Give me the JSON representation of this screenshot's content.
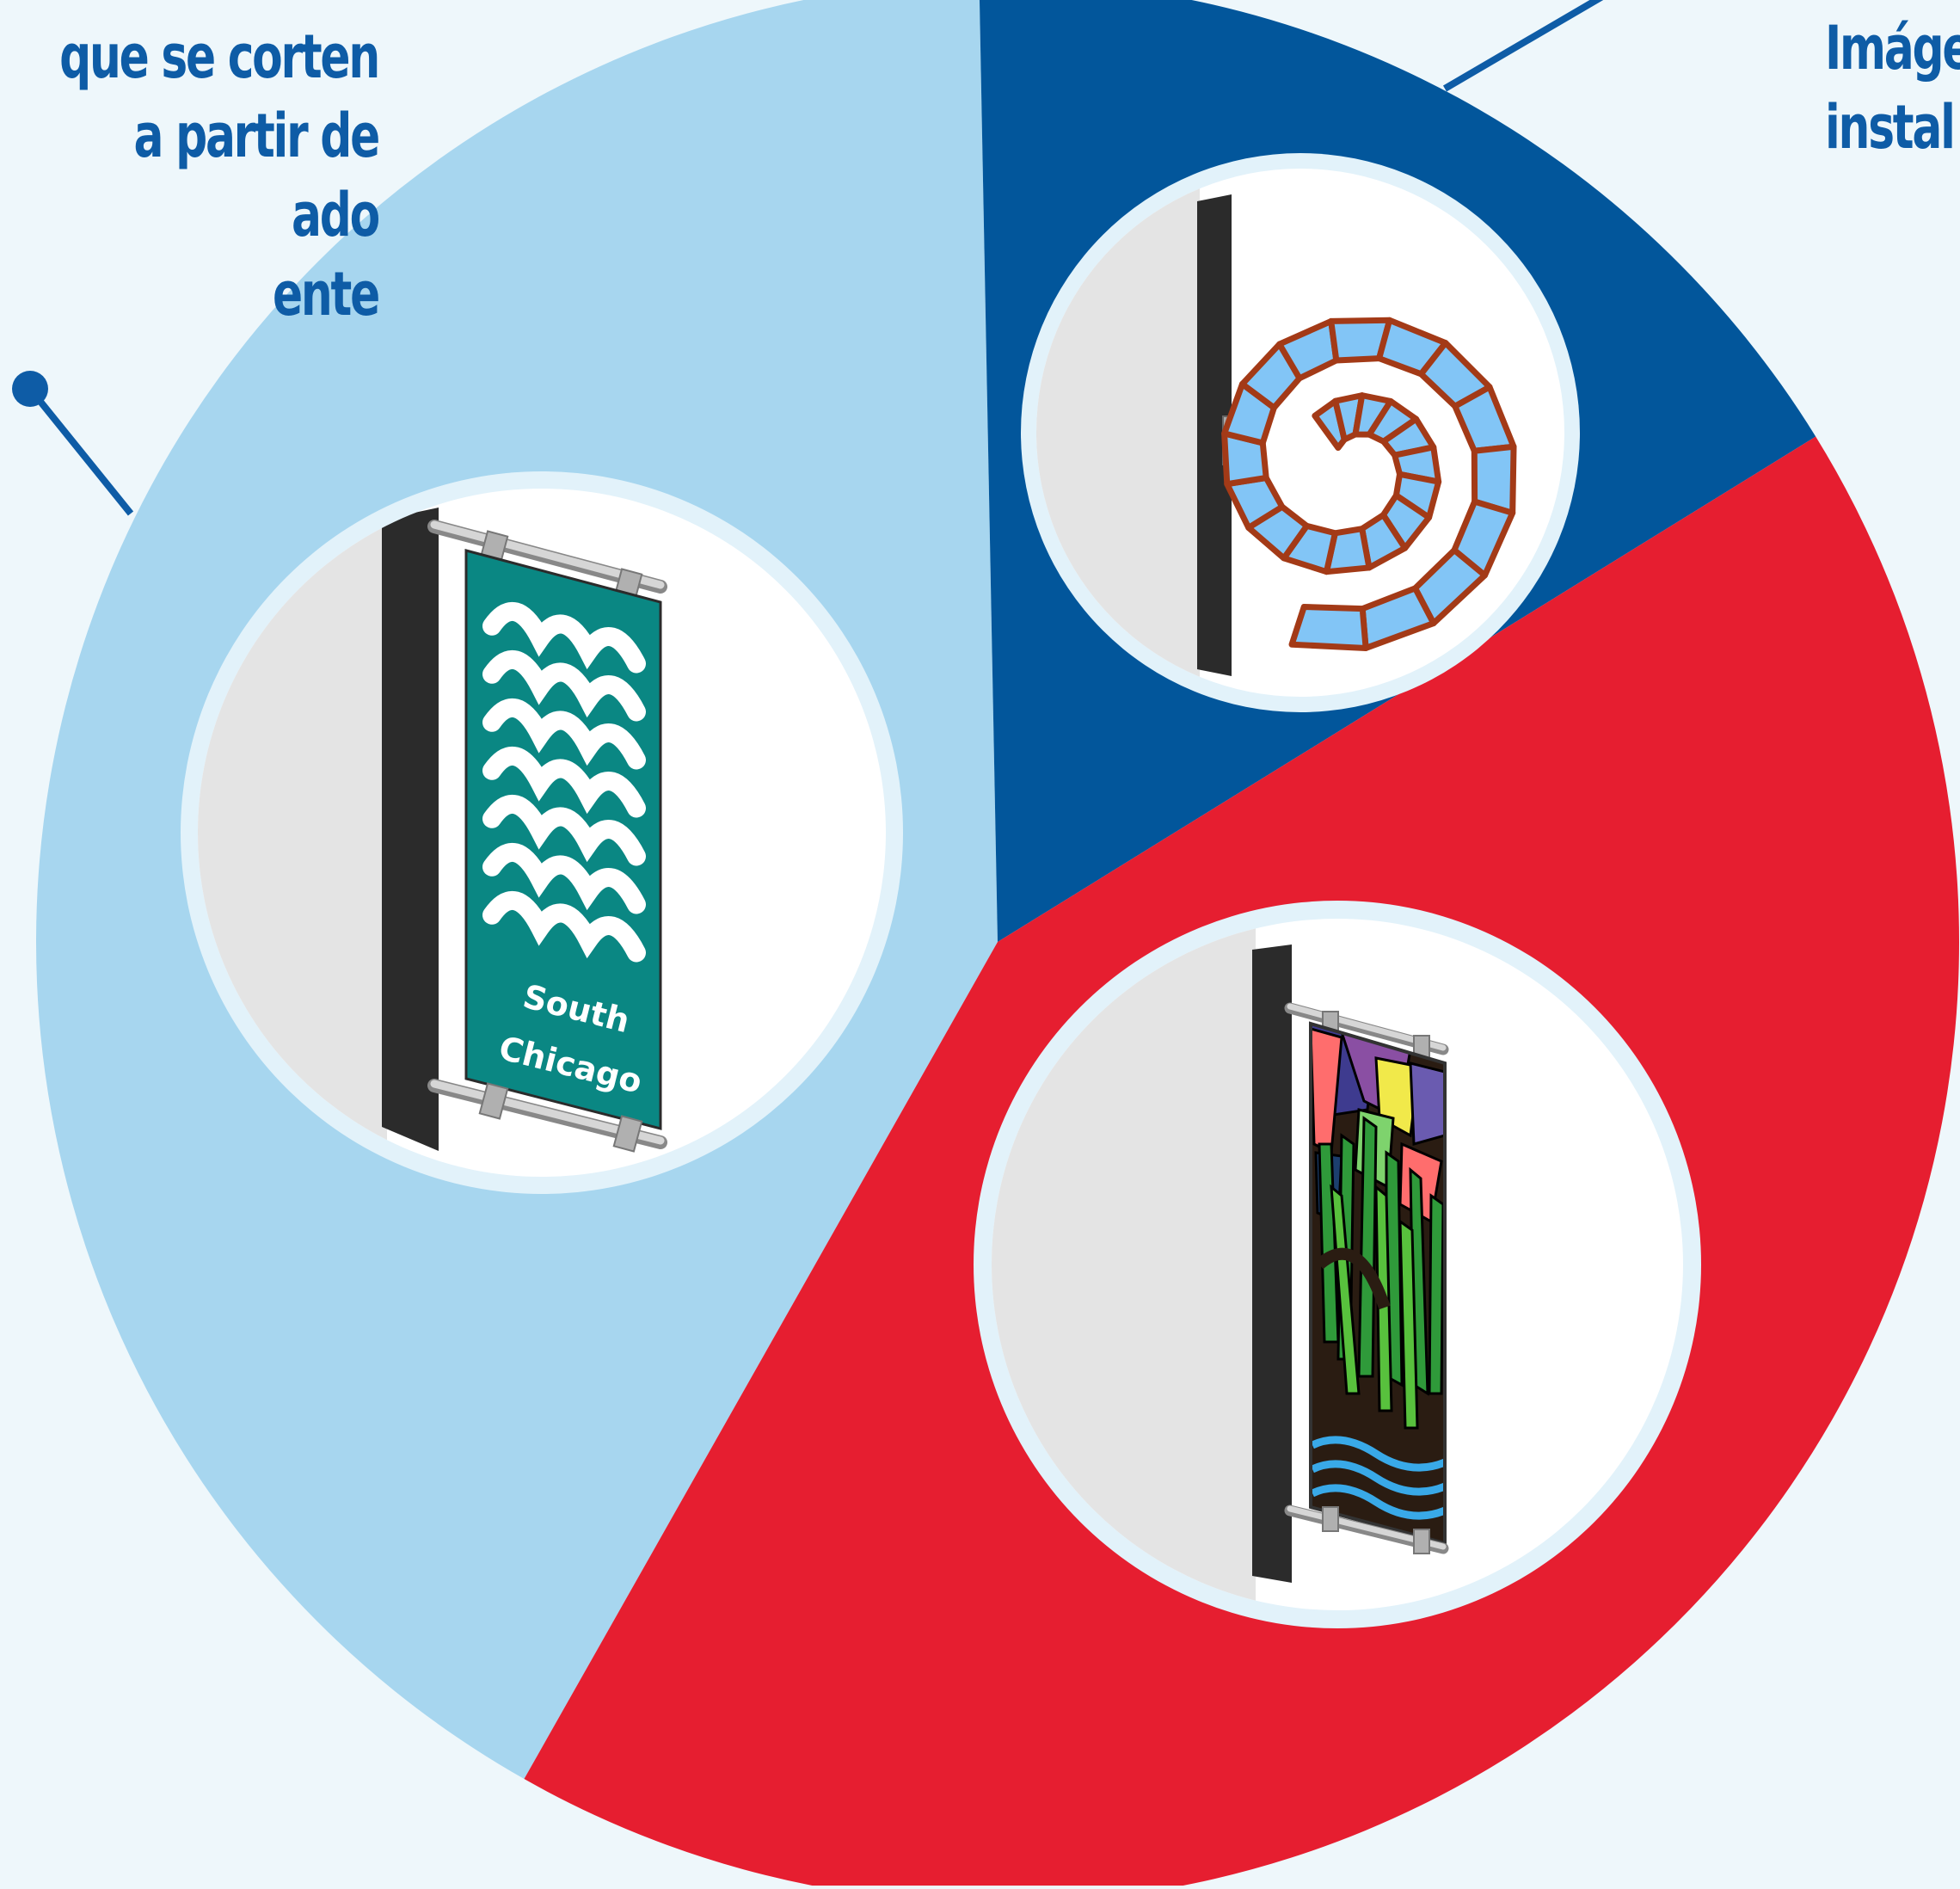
{
  "diagram": {
    "type": "pie-infographic",
    "colors": {
      "background": "#eef7fb",
      "light_blue": "#a7d6ef",
      "dark_blue": "#02569b",
      "red": "#e61e30",
      "circle_frame": "#e2f2fa",
      "text": "#0e5ca6"
    },
    "segments": [
      {
        "name": "light-blue",
        "value": 41.5,
        "color": "#a7d6ef",
        "icon": "south-chicago-wave-banner"
      },
      {
        "name": "dark-blue",
        "value": 16.5,
        "color": "#02569b",
        "icon": "spiral-mosaic-sign"
      },
      {
        "name": "red",
        "value": 42.0,
        "color": "#e61e30",
        "icon": "stained-glass-grass-banner"
      }
    ],
    "callouts": {
      "left": {
        "lines": [
          "que se corten",
          "a partir de",
          "ado",
          "ente"
        ]
      },
      "right": {
        "lines": [
          "Imáge",
          "instal"
        ]
      }
    },
    "banner_text": {
      "line1": "South",
      "line2": "Chicago"
    }
  }
}
